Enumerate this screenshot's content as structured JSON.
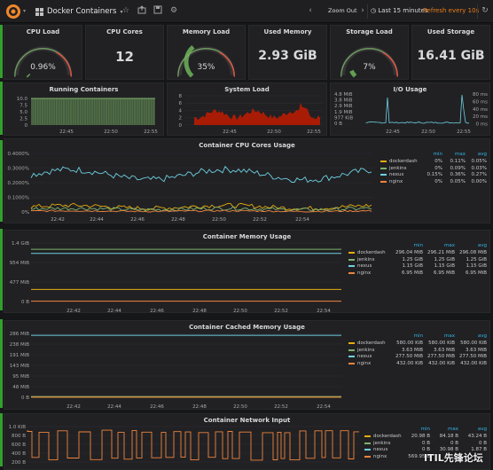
{
  "header": {
    "dashboard_title": "Docker Containers",
    "zoom_out": "Zoom Out",
    "time_range": "Last 15 minutes",
    "refresh": "Refresh every 10s"
  },
  "singlestats": {
    "cpu_load": {
      "title": "CPU Load",
      "value": "0.96%",
      "percent": 0.96
    },
    "cpu_cores": {
      "title": "CPU Cores",
      "value": "12"
    },
    "memory_load": {
      "title": "Memory Load",
      "value": "35%",
      "percent": 35
    },
    "used_memory": {
      "title": "Used Memory",
      "value": "2.93 GiB"
    },
    "storage_load": {
      "title": "Storage Load",
      "value": "7%",
      "percent": 7
    },
    "used_storage": {
      "title": "Used Storage",
      "value": "16.41 GiB"
    }
  },
  "running_containers": {
    "title": "Running Containers",
    "yticks": [
      "10.0",
      "7.5",
      "5.0",
      "2.5",
      "0"
    ],
    "xticks": [
      "22:45",
      "22:50",
      "22:55"
    ],
    "color": "#7eb26d"
  },
  "system_load": {
    "title": "System Load",
    "yticks": [
      "8",
      "6",
      "4",
      "2",
      "0"
    ],
    "xticks": [
      "22:45",
      "22:50",
      "22:55"
    ],
    "color": "#bf1b00"
  },
  "io_usage": {
    "title": "I/O Usage",
    "yticks_left": [
      "4.8 MiB",
      "3.8 MiB",
      "2.9 MiB",
      "1.9 MiB",
      "977 KiB",
      "0 B"
    ],
    "yticks_right": [
      "80 ms",
      "60 ms",
      "40 ms",
      "20 ms",
      "0 ms"
    ],
    "xticks": [
      "22:45",
      "22:50",
      "22:55"
    ]
  },
  "cpu_cores_usage": {
    "title": "Container CPU Cores Usage",
    "yticks": [
      "0.4000%",
      "0.3000%",
      "0.2000%",
      "0.1000%",
      "0%"
    ],
    "xticks": [
      "22:42",
      "22:44",
      "22:46",
      "22:48",
      "22:50",
      "22:52",
      "22:54"
    ],
    "legend_headers": [
      "min",
      "max",
      "avg"
    ],
    "legend": [
      {
        "name": "dockerdash",
        "min": "0%",
        "max": "0.11%",
        "avg": "0.05%",
        "color": "#e5ac0e"
      },
      {
        "name": "jenkins",
        "min": "0%",
        "max": "0.09%",
        "avg": "0.03%",
        "color": "#7eb26d"
      },
      {
        "name": "nexus",
        "min": "0.15%",
        "max": "0.36%",
        "avg": "0.27%",
        "color": "#6ed0e0"
      },
      {
        "name": "nginx",
        "min": "0%",
        "max": "0.05%",
        "avg": "0.00%",
        "color": "#ef843c"
      }
    ]
  },
  "memory_usage": {
    "title": "Container Memory Usage",
    "yticks": [
      "1.4 GiB",
      "954 MiB",
      "477 MiB",
      "0 B"
    ],
    "xticks": [
      "22:42",
      "22:44",
      "22:46",
      "22:48",
      "22:50",
      "22:52",
      "22:54"
    ],
    "legend_headers": [
      "min",
      "max",
      "avg"
    ],
    "legend": [
      {
        "name": "dockerdash",
        "min": "296.04 MiB",
        "max": "296.21 MiB",
        "avg": "296.08 MiB",
        "color": "#e5ac0e"
      },
      {
        "name": "jenkins",
        "min": "1.25 GiB",
        "max": "1.25 GiB",
        "avg": "1.25 GiB",
        "color": "#7eb26d"
      },
      {
        "name": "nexus",
        "min": "1.15 GiB",
        "max": "1.15 GiB",
        "avg": "1.15 GiB",
        "color": "#6ed0e0"
      },
      {
        "name": "nginx",
        "min": "6.95 MiB",
        "max": "6.95 MiB",
        "avg": "6.95 MiB",
        "color": "#ef843c"
      }
    ]
  },
  "cached_memory": {
    "title": "Container Cached Memory Usage",
    "yticks": [
      "286 MiB",
      "238 MiB",
      "191 MiB",
      "143 MiB",
      "95 MiB",
      "48 MiB",
      "0 B"
    ],
    "xticks": [
      "22:42",
      "22:44",
      "22:46",
      "22:48",
      "22:50",
      "22:52",
      "22:54"
    ],
    "legend_headers": [
      "min",
      "max",
      "avg"
    ],
    "legend": [
      {
        "name": "dockerdash",
        "min": "580.00 KiB",
        "max": "580.00 KiB",
        "avg": "580.00 KiB",
        "color": "#e5ac0e"
      },
      {
        "name": "jenkins",
        "min": "3.63 MiB",
        "max": "3.63 MiB",
        "avg": "3.63 MiB",
        "color": "#7eb26d"
      },
      {
        "name": "nexus",
        "min": "277.50 MiB",
        "max": "277.50 MiB",
        "avg": "277.50 MiB",
        "color": "#6ed0e0"
      },
      {
        "name": "nginx",
        "min": "432.00 KiB",
        "max": "432.00 KiB",
        "avg": "432.00 KiB",
        "color": "#ef843c"
      }
    ]
  },
  "network_input": {
    "title": "Container Network Input",
    "yticks": [
      "1.0 KiB",
      "800 B",
      "600 B",
      "400 B",
      "200 B"
    ],
    "legend_headers": [
      "min",
      "max",
      "avg"
    ],
    "legend": [
      {
        "name": "dockerdash",
        "min": "20.98 B",
        "max": "84.18 B",
        "avg": "43.24 B",
        "color": "#e5ac0e"
      },
      {
        "name": "jenkins",
        "min": "0 B",
        "max": "0 B",
        "avg": "0 B",
        "color": "#7eb26d"
      },
      {
        "name": "nexus",
        "min": "0 B",
        "max": "30.98 B",
        "avg": "1.87 B",
        "color": "#6ed0e0"
      },
      {
        "name": "nginx",
        "min": "569.95 B",
        "max": "",
        "avg": "",
        "color": "#ef843c"
      }
    ]
  },
  "watermark": "ITIL先锋论坛"
}
